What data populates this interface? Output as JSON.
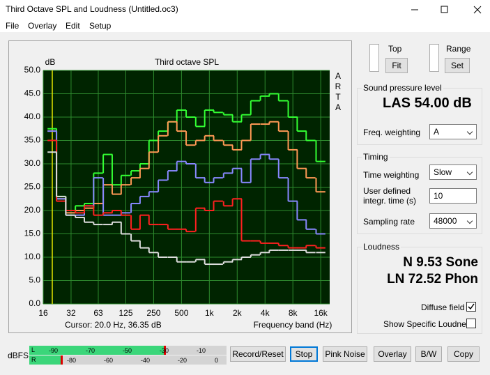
{
  "window": {
    "title": "Third Octave SPL and Loudness (Untitled.oc3)"
  },
  "menu": [
    "File",
    "Overlay",
    "Edit",
    "Setup"
  ],
  "chart_data": {
    "type": "line",
    "step": true,
    "x_log": true,
    "grid": true,
    "title": "Third octave SPL",
    "y_label": "dB",
    "x_label": "Frequency band (Hz)",
    "brand": "ARTA",
    "cursor": "Cursor:   20.0 Hz, 36.35 dB",
    "x": [
      20,
      25,
      31.5,
      40,
      50,
      63,
      80,
      100,
      125,
      160,
      200,
      250,
      315,
      400,
      500,
      630,
      800,
      1000,
      1250,
      1600,
      2000,
      2500,
      3150,
      4000,
      5000,
      6300,
      8000,
      10000,
      12500,
      16000
    ],
    "series": [
      {
        "name": "green",
        "color": "#33ff33",
        "values": [
          37.5,
          23,
          20,
          21,
          21.5,
          28,
          32,
          25.5,
          27.5,
          28.5,
          30,
          35,
          37,
          39,
          41.5,
          40,
          38,
          41.5,
          41,
          40.5,
          39,
          40.5,
          43.5,
          44.5,
          45,
          43.5,
          40,
          37,
          35,
          30.5
        ]
      },
      {
        "name": "orange",
        "color": "#ff9955",
        "values": [
          37,
          22.5,
          19.5,
          20,
          20.5,
          21.5,
          25.5,
          23.5,
          25.5,
          27,
          29,
          32.5,
          36,
          39,
          37,
          34,
          35,
          36,
          35,
          34,
          33,
          35,
          38.5,
          38.5,
          39,
          37,
          33,
          29,
          27,
          24
        ]
      },
      {
        "name": "blue",
        "color": "#8888ff",
        "values": [
          37,
          22.5,
          19,
          19,
          21,
          27,
          19,
          19,
          19.5,
          21.5,
          23,
          24,
          26.5,
          28.5,
          30.5,
          30,
          27,
          26,
          27,
          28,
          29,
          26,
          31,
          32,
          31,
          27,
          22,
          18,
          16,
          15
        ]
      },
      {
        "name": "red",
        "color": "#ff2020",
        "values": [
          35,
          22,
          20,
          19.5,
          21,
          19,
          19.5,
          20,
          19,
          16,
          19,
          17,
          17,
          16,
          16,
          15.5,
          20.5,
          20,
          22,
          21,
          22.5,
          13.5,
          13.5,
          13,
          13,
          12.5,
          12,
          12,
          12.5,
          12
        ]
      },
      {
        "name": "white",
        "color": "#dddddd",
        "values": [
          32.5,
          23,
          19,
          18.5,
          17.5,
          17,
          17,
          17.5,
          15,
          13.5,
          12,
          11,
          10,
          10,
          9,
          9,
          9.5,
          8.5,
          8.5,
          9,
          9.5,
          10,
          10.5,
          11,
          11.5,
          11.5,
          11.5,
          11.5,
          11,
          11
        ]
      }
    ],
    "xlim": [
      16,
      20000
    ],
    "ylim": [
      0,
      50
    ],
    "xticks": [
      16,
      32,
      63,
      125,
      250,
      500,
      {
        "value": 1000,
        "label": "1k"
      },
      {
        "value": 2000,
        "label": "2k"
      },
      {
        "value": 4000,
        "label": "4k"
      },
      {
        "value": 8000,
        "label": "8k"
      },
      {
        "value": 16000,
        "label": "16k"
      }
    ],
    "yticks": [
      {
        "value": 0,
        "label": "0.0"
      },
      {
        "value": 5,
        "label": "5.0"
      },
      {
        "value": 10,
        "label": "10.0"
      },
      {
        "value": 15,
        "label": "15.0"
      },
      {
        "value": 20,
        "label": "20.0"
      },
      {
        "value": 25,
        "label": "25.0"
      },
      {
        "value": 30,
        "label": "30.0"
      },
      {
        "value": 35,
        "label": "35.0"
      },
      {
        "value": 40,
        "label": "40.0"
      },
      {
        "value": 45,
        "label": "45.0"
      },
      {
        "value": 50,
        "label": "50.0"
      }
    ]
  },
  "controls": {
    "top": {
      "label": "Top",
      "button": "Fit"
    },
    "range": {
      "label": "Range",
      "button": "Set"
    },
    "spl": {
      "title": "Sound pressure level",
      "reading": "LAS 54.00 dB",
      "weighting_label": "Freq. weighting",
      "weighting": "A"
    },
    "timing": {
      "title": "Timing",
      "time_weighting_label": "Time weighting",
      "time_weighting": "Slow",
      "integr_label": "User defined integr. time (s)",
      "integr_time": "10",
      "sampling_label": "Sampling rate",
      "sampling": "48000"
    },
    "loudness": {
      "title": "Loudness",
      "n": "N 9.53 Sone",
      "ln": "LN 72.52 Phon",
      "diffuse": "Diffuse field",
      "specific": "Show Specific Loudness"
    }
  },
  "meter": {
    "label": "dBFS",
    "l": "L",
    "r": "R",
    "l_scale": [
      "-90",
      "-70",
      "-50",
      "-30",
      "-10"
    ],
    "r_scale": [
      "-80",
      "-60",
      "-40",
      "-20",
      "0"
    ]
  },
  "buttons": [
    "Record/Reset",
    "Stop",
    "Pink Noise",
    "Overlay",
    "B/W",
    "Copy"
  ]
}
